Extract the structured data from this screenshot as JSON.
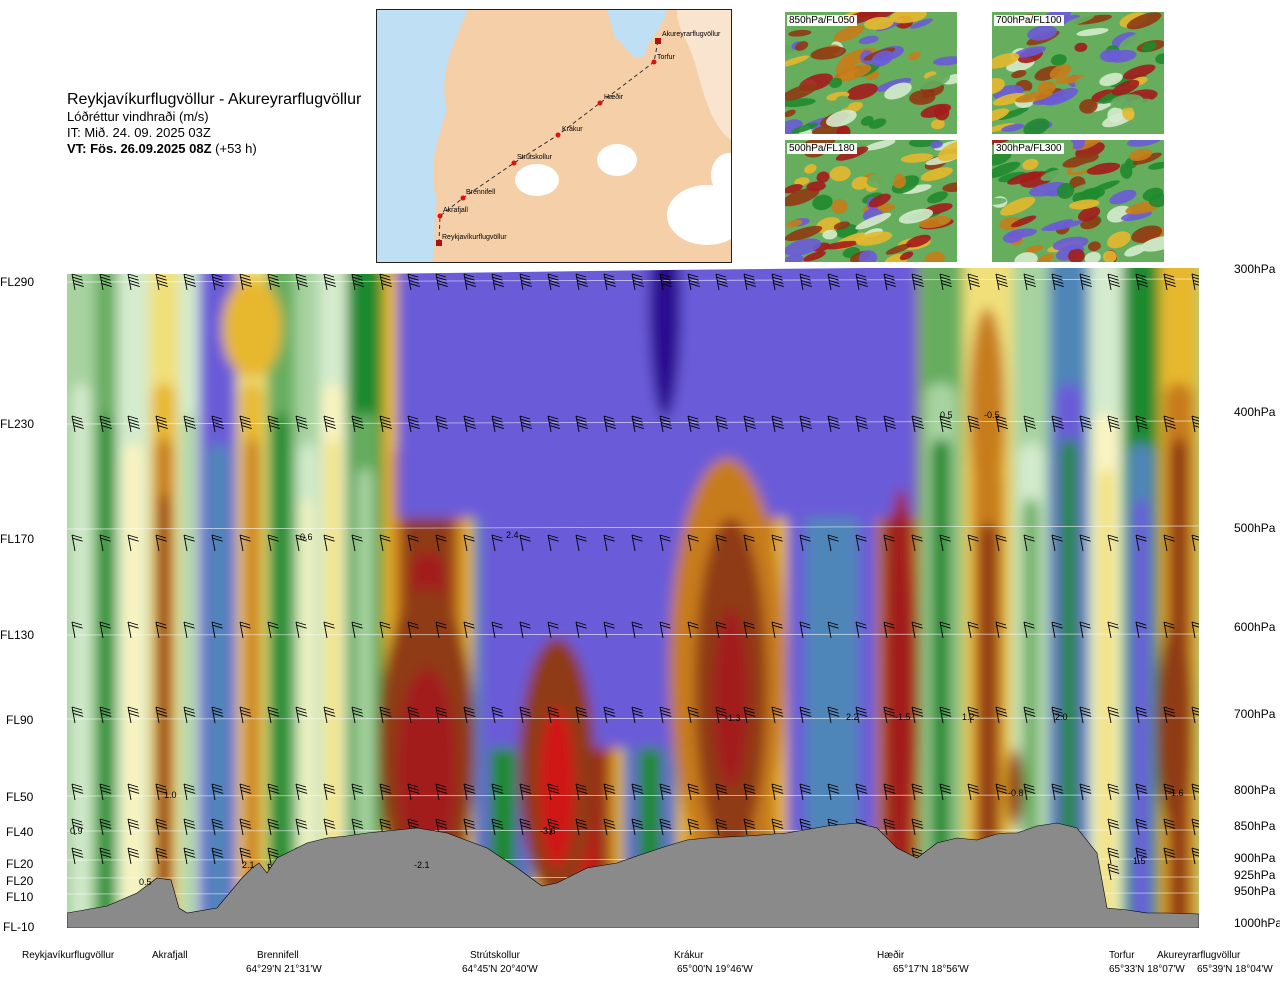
{
  "header": {
    "route": "Reykjavíkurflugvöllur - Akureyrarflugvöllur",
    "variable": "Lóðréttur vindhraði (m/s)",
    "issue_time": "IT: Mið. 24. 09. 2025 03Z",
    "valid_prefix": "VT: Fös. 26.09.2025 08Z",
    "valid_suffix": "(+53 h)"
  },
  "route_map": {
    "stations": [
      "Reykjavíkurflugvöllur",
      "Akrafjall",
      "Brennifell",
      "Strútskollur",
      "Krákur",
      "Hæðir",
      "Torfur",
      "Akureyrarflugvöllur"
    ]
  },
  "thumbnails": [
    {
      "label": "850hPa/FL050"
    },
    {
      "label": "700hPa/FL100"
    },
    {
      "label": "500hPa/FL180"
    },
    {
      "label": "300hPa/FL300"
    }
  ],
  "chart_data": {
    "type": "heatmap",
    "title": "Reykjavíkurflugvöllur - Akureyrarflugvöllur",
    "variable": "Lóðréttur vindhraði (m/s)",
    "flight_levels": [
      "FL290",
      "FL230",
      "FL170",
      "FL130",
      "FL90",
      "FL50",
      "FL40",
      "FL20",
      "FL20",
      "FL10",
      "FL-10"
    ],
    "pressure_levels": [
      "300hPa",
      "400hPa",
      "500hPa",
      "600hPa",
      "700hPa",
      "800hPa",
      "850hPa",
      "900hPa",
      "925hPa",
      "950hPa",
      "1000hPa"
    ],
    "stations": [
      {
        "name": "Reykjavíkurflugvöllur",
        "coord": ""
      },
      {
        "name": "Akrafjall",
        "coord": ""
      },
      {
        "name": "Brennifell",
        "coord": "64°29'N 21°31'W"
      },
      {
        "name": "Strútskollur",
        "coord": "64°45'N 20°40'W"
      },
      {
        "name": "Krákur",
        "coord": "65°00'N 19°46'W"
      },
      {
        "name": "Hæðir",
        "coord": "65°17'N 18°56'W"
      },
      {
        "name": "Torfur",
        "coord": "65°33'N 18°07'W"
      },
      {
        "name": "Akureyrarflugvöllur",
        "coord": "65°39'N 18°04'W"
      }
    ],
    "value_labels": [
      "0.9",
      "1.0",
      "0.5",
      "2.1",
      "0.6",
      "-2.1",
      "2.4",
      "-3.6",
      "-1.3",
      "2.2",
      "-1.5",
      "1.2",
      "-0.8",
      "0.5",
      "-0.5",
      "2.0",
      "1.5",
      "-1.6"
    ],
    "color_scale": [
      "#2a0a90",
      "#6a5bd8",
      "#4f86b8",
      "#1f8a2e",
      "#66ad5e",
      "#a7d3a0",
      "#d4ebcd",
      "#fbf4c0",
      "#f1e07a",
      "#e7b82e",
      "#c77c1a",
      "#8f3a12",
      "#a31c1c",
      "#d11414"
    ]
  }
}
